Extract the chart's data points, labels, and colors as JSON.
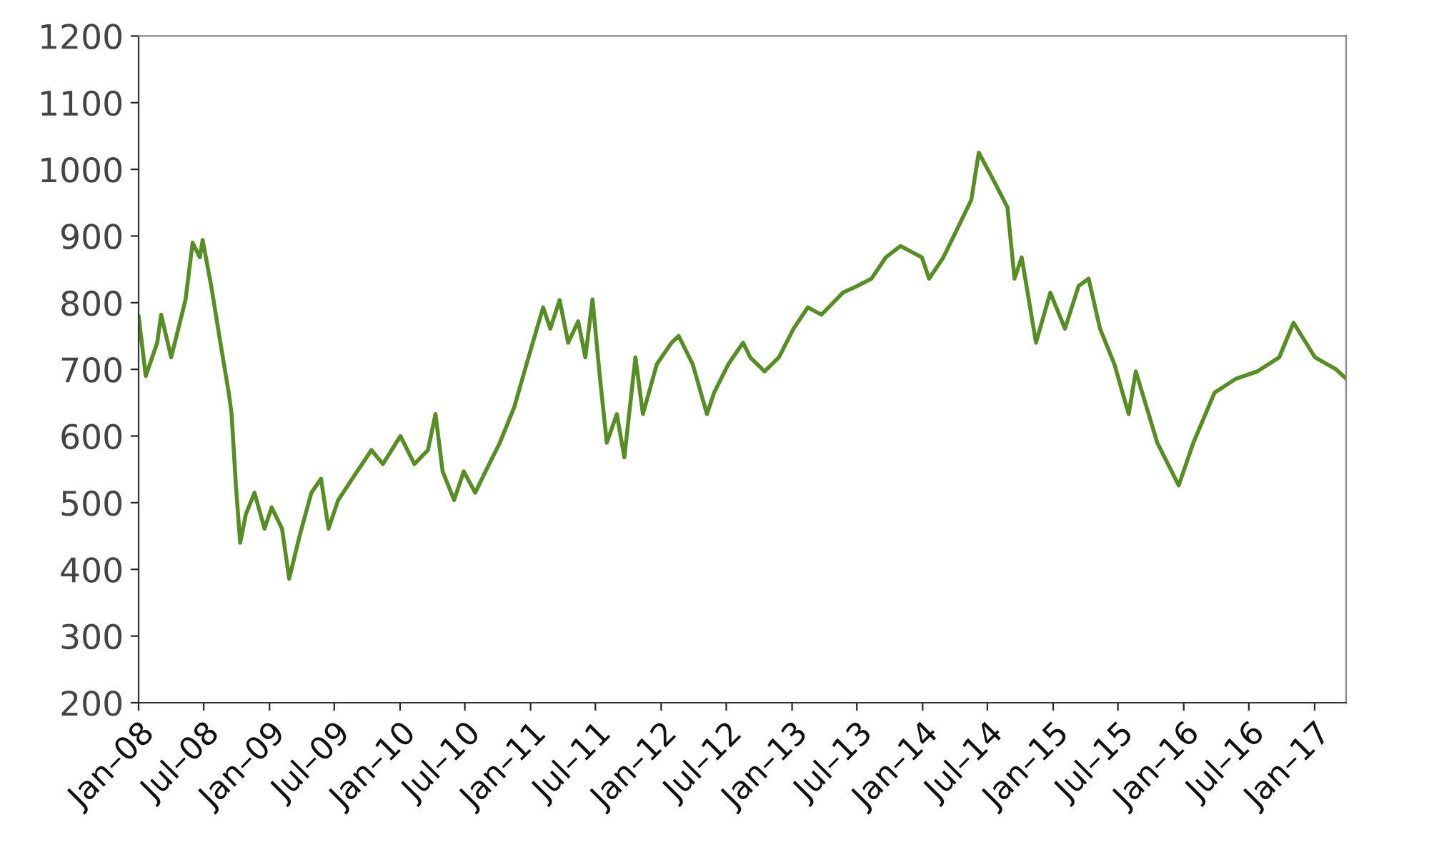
{
  "chart_data": {
    "type": "line",
    "x": [
      "2008-01-01",
      "2008-01-21",
      "2008-02-22",
      "2008-03-04",
      "2008-04-01",
      "2008-04-21",
      "2008-05-11",
      "2008-05-31",
      "2008-06-20",
      "2008-06-28",
      "2008-07-22",
      "2008-08-20",
      "2008-09-09",
      "2008-09-17",
      "2008-09-29",
      "2008-10-11",
      "2008-10-27",
      "2008-11-20",
      "2008-12-18",
      "2009-01-07",
      "2009-02-05",
      "2009-02-25",
      "2009-03-26",
      "2009-04-28",
      "2009-05-25",
      "2009-06-15",
      "2009-07-12",
      "2009-09-03",
      "2009-10-13",
      "2009-11-14",
      "2010-01-02",
      "2010-02-10",
      "2010-03-20",
      "2010-04-10",
      "2010-04-30",
      "2010-06-01",
      "2010-06-28",
      "2010-07-30",
      "2010-08-28",
      "2010-10-07",
      "2010-11-16",
      "2010-12-26",
      "2011-02-05",
      "2011-02-25",
      "2011-03-23",
      "2011-04-16",
      "2011-05-14",
      "2011-06-03",
      "2011-06-23",
      "2011-07-13",
      "2011-08-02",
      "2011-08-30",
      "2011-09-20",
      "2011-10-21",
      "2011-11-11",
      "2011-12-20",
      "2012-01-30",
      "2012-02-19",
      "2012-03-29",
      "2012-05-08",
      "2012-05-28",
      "2012-07-07",
      "2012-08-17",
      "2012-09-06",
      "2012-10-16",
      "2012-11-25",
      "2013-01-05",
      "2013-02-14",
      "2013-03-24",
      "2013-05-03",
      "2013-05-23",
      "2013-07-02",
      "2013-08-11",
      "2013-09-20",
      "2013-10-31",
      "2013-12-30",
      "2014-01-19",
      "2014-02-28",
      "2014-04-08",
      "2014-05-17",
      "2014-06-07",
      "2014-07-16",
      "2014-08-26",
      "2014-09-15",
      "2014-10-05",
      "2014-10-25",
      "2014-11-14",
      "2014-12-24",
      "2015-02-03",
      "2015-03-13",
      "2015-04-10",
      "2015-05-12",
      "2015-06-21",
      "2015-07-31",
      "2015-08-20",
      "2015-10-19",
      "2015-12-18",
      "2016-01-28",
      "2016-03-27",
      "2016-05-26",
      "2016-07-25",
      "2016-09-24",
      "2016-11-03",
      "2017-01-02",
      "2017-03-02",
      "2017-03-30"
    ],
    "series": [
      {
        "color": "#578e23",
        "values": [
          780,
          690,
          740,
          782,
          718,
          761,
          804,
          890,
          868,
          894,
          825,
          729,
          665,
          633,
          526,
          440,
          483,
          515,
          461,
          493,
          461,
          386,
          450,
          515,
          536,
          461,
          504,
          547,
          579,
          558,
          600,
          558,
          579,
          633,
          547,
          504,
          547,
          515,
          547,
          590,
          643,
          718,
          793,
          761,
          804,
          740,
          772,
          718,
          805,
          692,
          590,
          633,
          568,
          718,
          633,
          708,
          740,
          750,
          708,
          633,
          665,
          708,
          740,
          718,
          697,
          718,
          761,
          793,
          782,
          804,
          815,
          825,
          836,
          868,
          885,
          868,
          836,
          868,
          911,
          954,
          1025,
          986,
          943,
          836,
          868,
          804,
          740,
          815,
          761,
          825,
          836,
          761,
          708,
          633,
          697,
          590,
          526,
          590,
          665,
          686,
          697,
          718,
          770,
          718,
          700,
          686
        ]
      }
    ],
    "xlim": [
      "2008-01-01",
      "2017-03-30"
    ],
    "xticks": [
      {
        "value": "2008-01-01",
        "label": "Jan–08"
      },
      {
        "value": "2008-07-01",
        "label": "Jul–08"
      },
      {
        "value": "2009-01-01",
        "label": "Jan–09"
      },
      {
        "value": "2009-07-01",
        "label": "Jul–09"
      },
      {
        "value": "2010-01-01",
        "label": "Jan–10"
      },
      {
        "value": "2010-07-01",
        "label": "Jul–10"
      },
      {
        "value": "2011-01-01",
        "label": "Jan–11"
      },
      {
        "value": "2011-07-01",
        "label": "Jul–11"
      },
      {
        "value": "2012-01-01",
        "label": "Jan–12"
      },
      {
        "value": "2012-07-01",
        "label": "Jul–12"
      },
      {
        "value": "2013-01-01",
        "label": "Jan–13"
      },
      {
        "value": "2013-07-01",
        "label": "Jul–13"
      },
      {
        "value": "2014-01-01",
        "label": "Jan–14"
      },
      {
        "value": "2014-07-01",
        "label": "Jul–14"
      },
      {
        "value": "2015-01-01",
        "label": "Jan–15"
      },
      {
        "value": "2015-07-01",
        "label": "Jul–15"
      },
      {
        "value": "2016-01-01",
        "label": "Jan–16"
      },
      {
        "value": "2016-07-01",
        "label": "Jul–16"
      },
      {
        "value": "2017-01-01",
        "label": "Jan–17"
      }
    ],
    "ylim": [
      200,
      1200
    ],
    "yticks": [
      200,
      300,
      400,
      500,
      600,
      700,
      800,
      900,
      1000,
      1100,
      1200
    ],
    "grid": false,
    "legend": false,
    "marker": "none",
    "line_style": "solid"
  }
}
